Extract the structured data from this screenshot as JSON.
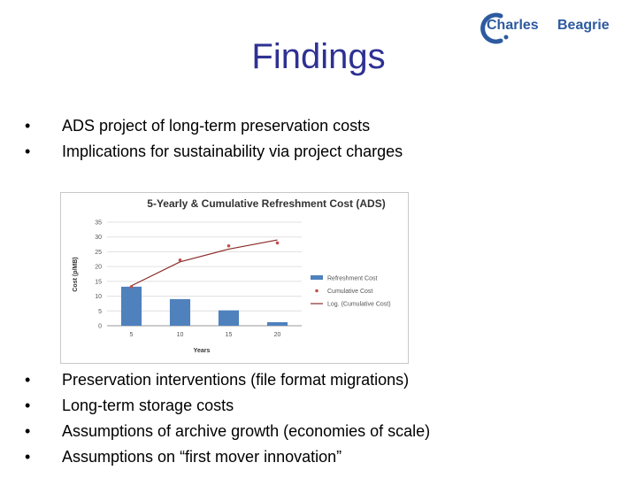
{
  "logo": {
    "text_a": "Charles",
    "text_b": "Beagrie"
  },
  "slide": {
    "title": "Findings",
    "bullets_top": [
      "ADS project of long-term preservation costs",
      "Implications for sustainability via project charges"
    ],
    "bullets_bottom": [
      "Preservation interventions (file format migrations)",
      "Long-term storage costs",
      "Assumptions of archive growth (economies of scale)",
      "Assumptions on “first mover innovation”"
    ],
    "bullet_char": "•"
  },
  "chart_data": {
    "type": "bar",
    "title": "5-Yearly & Cumulative Refreshment Cost (ADS)",
    "xlabel": "Years",
    "ylabel": "Cost (p/MB)",
    "categories": [
      "5",
      "10",
      "15",
      "20"
    ],
    "ylim": [
      0,
      35
    ],
    "yticks": [
      0,
      5,
      10,
      15,
      20,
      25,
      30,
      35
    ],
    "grid": true,
    "legend_position": "right",
    "series": [
      {
        "name": "Refreshment Cost",
        "kind": "bar",
        "color": "#4f81bd",
        "values": [
          13.2,
          9.0,
          5.2,
          1.2
        ]
      },
      {
        "name": "Cumulative Cost",
        "kind": "scatter",
        "color": "#c0504d",
        "values": [
          13.2,
          22.2,
          27.0,
          28.0
        ]
      },
      {
        "name": "Log. (Cumulative Cost)",
        "kind": "trendline",
        "color": "#8b2a2a",
        "values": [
          13.5,
          21.6,
          25.9,
          29.0
        ]
      }
    ]
  }
}
